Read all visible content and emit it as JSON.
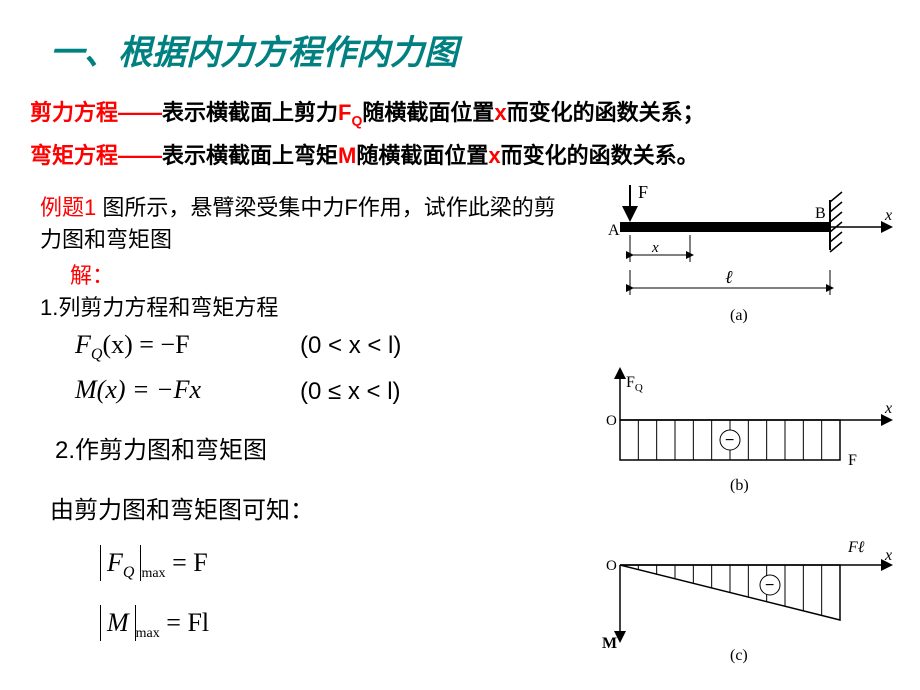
{
  "title": "一、根据内力方程作内力图",
  "def1_a": "剪力方程——",
  "def1_b": "表示横截面上剪力",
  "def1_c": "F",
  "def1_c_sub": "Q",
  "def1_d": "随横截面位置",
  "def1_e": "x",
  "def1_f": "而变化的函数关系；",
  "def2_a": "弯矩方程——",
  "def2_b": "表示横截面上弯矩",
  "def2_c": "M",
  "def2_d": "随横截面位置",
  "def2_e": "x",
  "def2_f": "而变化的函数关系。",
  "example_label": "例题1 ",
  "example_text": "图所示，悬臂梁受集中力F作用，试作此梁的剪力图和弯矩图",
  "solve": "解：",
  "step1": "1.列剪力方程和弯矩方程",
  "eq1": "F",
  "eq1_sub": "Q",
  "eq1_rest": "(x) = −F",
  "eq2": "M(x) = −Fx",
  "range1": "(0 < x < l)",
  "range2": "(0 ≤ x < l)",
  "step2": "2.作剪力图和弯矩图",
  "concl": "由剪力图和弯矩图可知：",
  "abs1_bar": "F",
  "abs1_sub": "Q",
  "abs1_max": "max",
  "abs1_eq": " = F",
  "abs2_bar": "M",
  "abs2_max": "max",
  "abs2_eq": " = Fl",
  "diagA": {
    "labels": {
      "F": "F",
      "A": "A",
      "B": "B",
      "x": "x",
      "l": "ℓ",
      "caption": "(a)"
    },
    "colors": {
      "line": "#000000",
      "fill": "#000000"
    }
  },
  "diagB": {
    "labels": {
      "FQ": "F",
      "FQ_sub": "Q",
      "O": "O",
      "x": "x",
      "F": "F",
      "minus": "−",
      "caption": "(b)"
    },
    "colors": {
      "line": "#000000"
    },
    "hatch_n": 12
  },
  "diagC": {
    "labels": {
      "O": "O",
      "x": "x",
      "Fl": "Fℓ",
      "M": "M",
      "minus": "−",
      "caption": "(c)"
    },
    "colors": {
      "line": "#000000"
    },
    "hatch_n": 12
  }
}
